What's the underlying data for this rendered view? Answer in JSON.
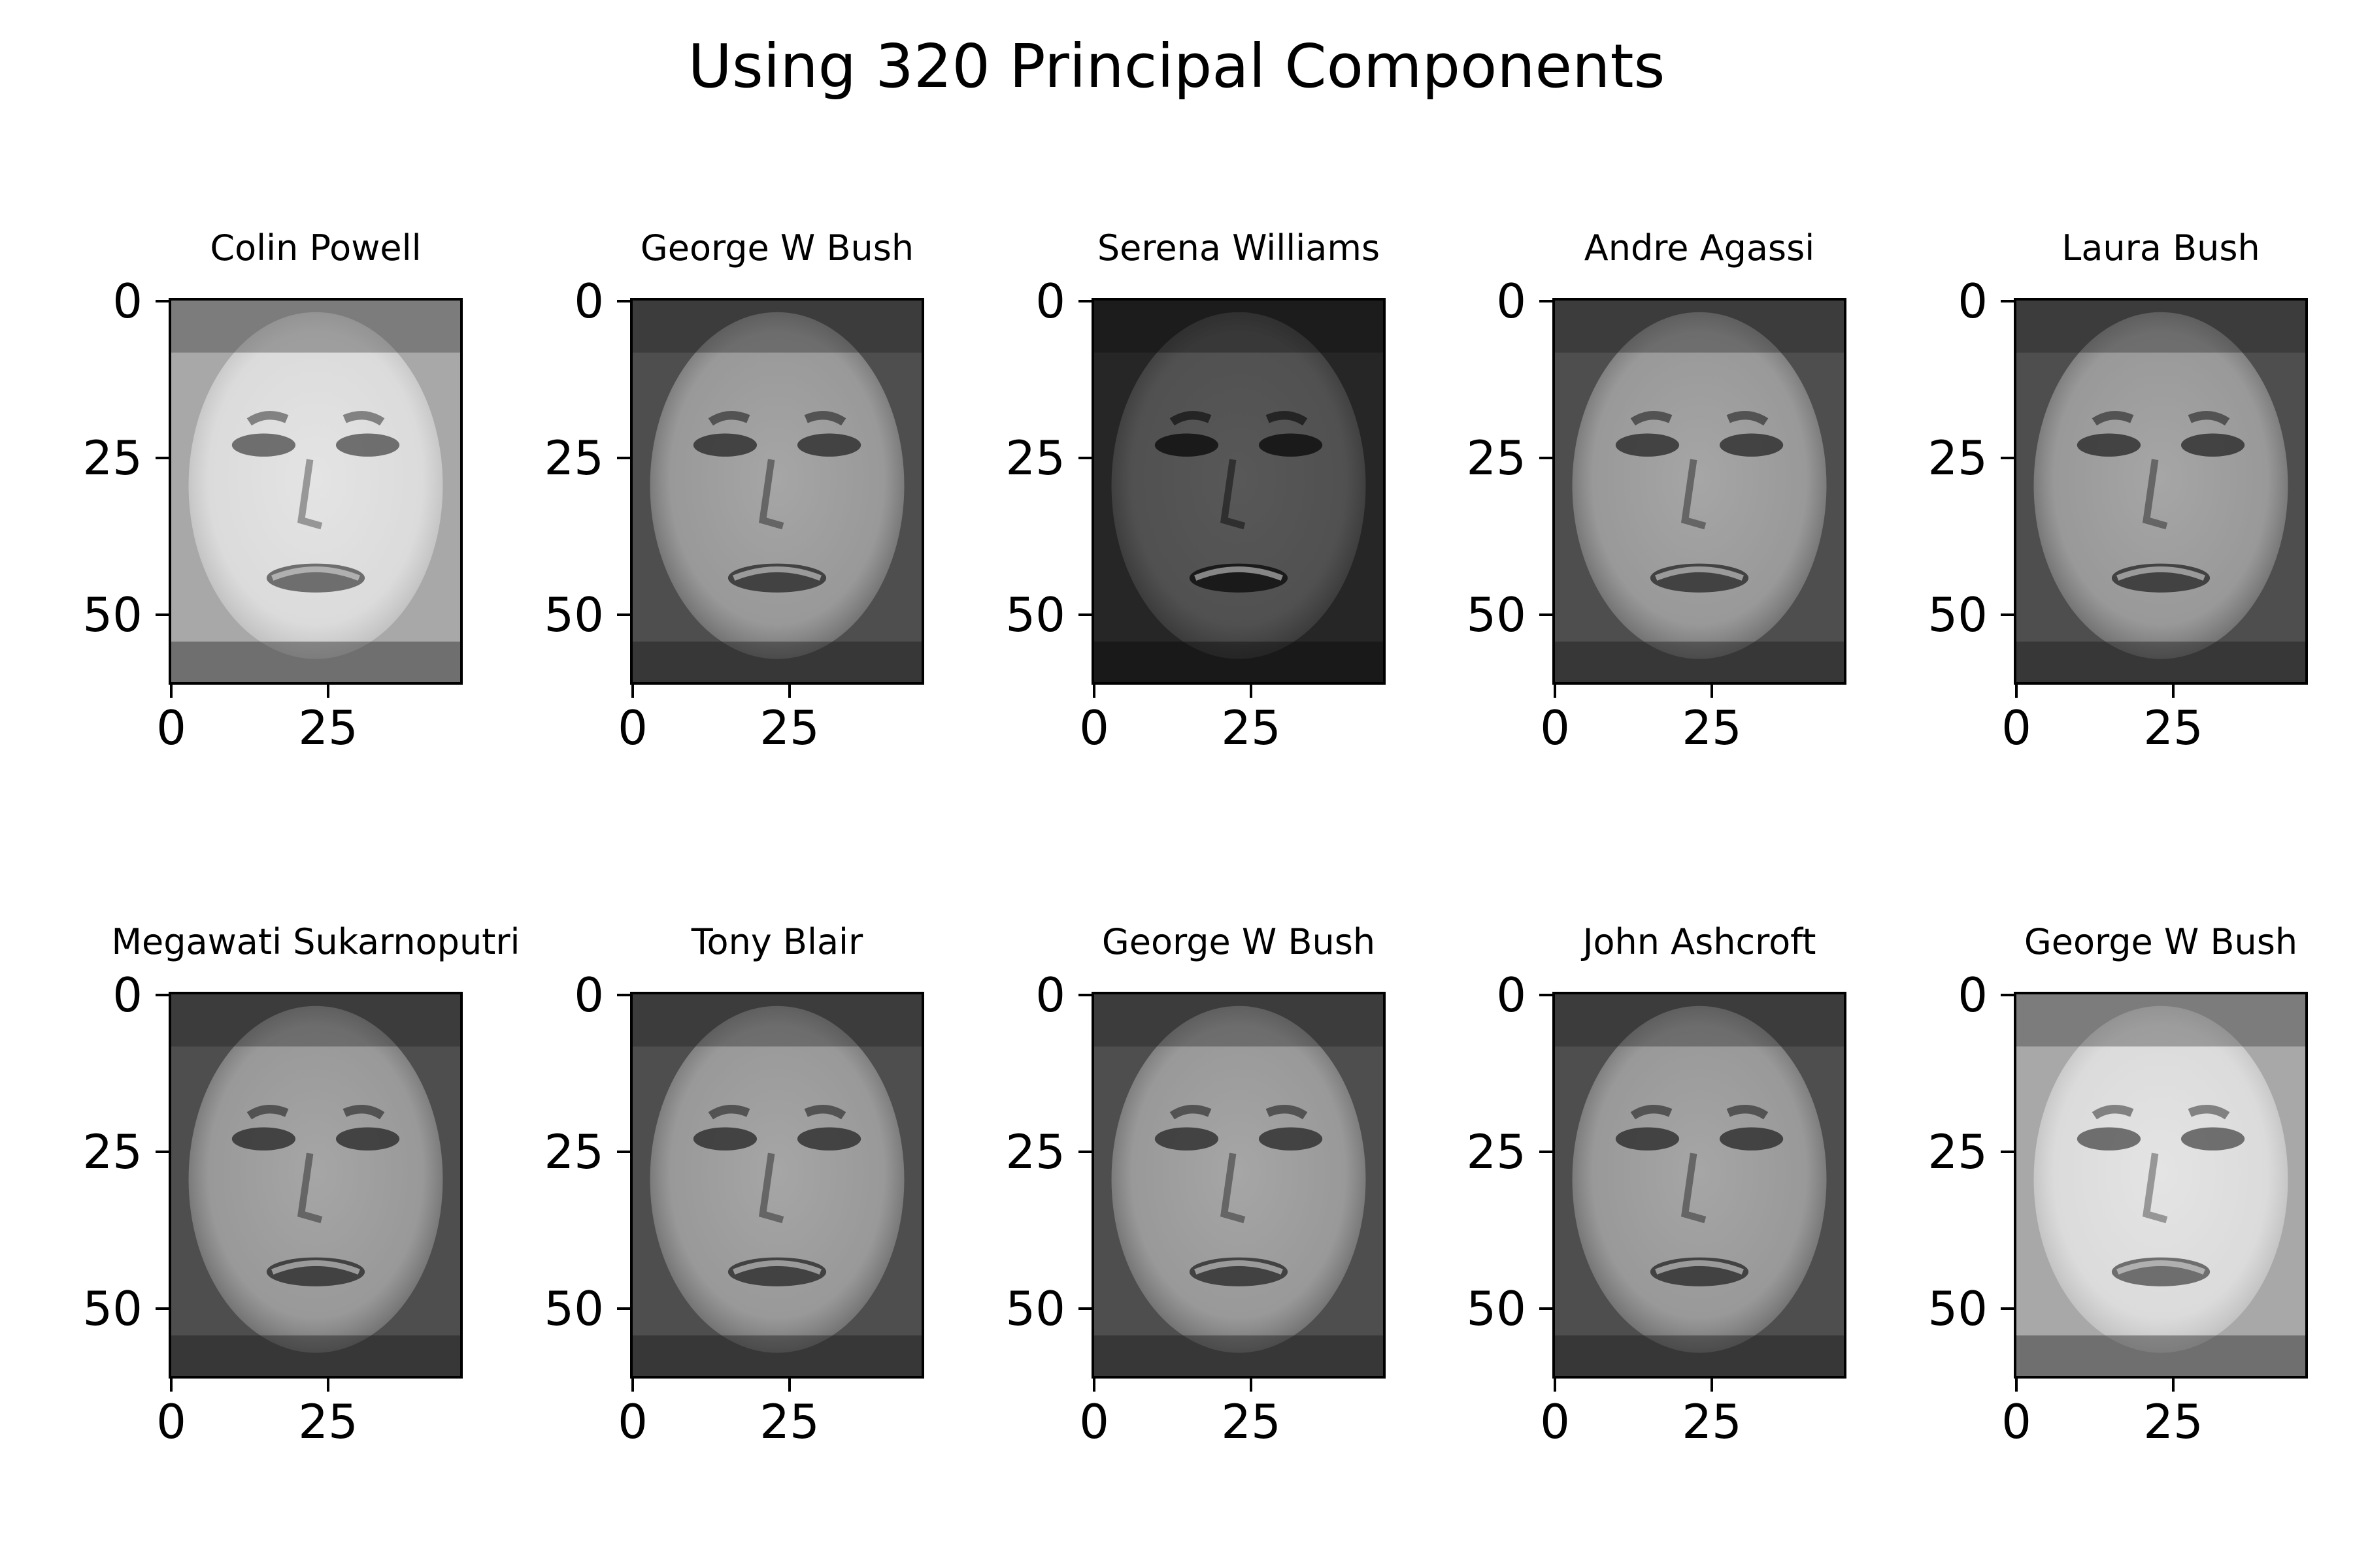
{
  "figure": {
    "title": "Using 320 Principal Components"
  },
  "axes": {
    "yticks": [
      "0",
      "25",
      "50"
    ],
    "xticks": [
      "0",
      "25"
    ]
  },
  "panels": [
    {
      "title": "Colin Powell",
      "tone": "light"
    },
    {
      "title": "George W Bush",
      "tone": "mid"
    },
    {
      "title": "Serena Williams",
      "tone": "dark"
    },
    {
      "title": "Andre Agassi",
      "tone": "mid"
    },
    {
      "title": "Laura Bush",
      "tone": "mid"
    },
    {
      "title": "Megawati Sukarnoputri",
      "tone": "mid"
    },
    {
      "title": "Tony Blair",
      "tone": "mid"
    },
    {
      "title": "George W Bush",
      "tone": "mid"
    },
    {
      "title": "John Ashcroft",
      "tone": "mid"
    },
    {
      "title": "George W Bush",
      "tone": "light"
    }
  ]
}
